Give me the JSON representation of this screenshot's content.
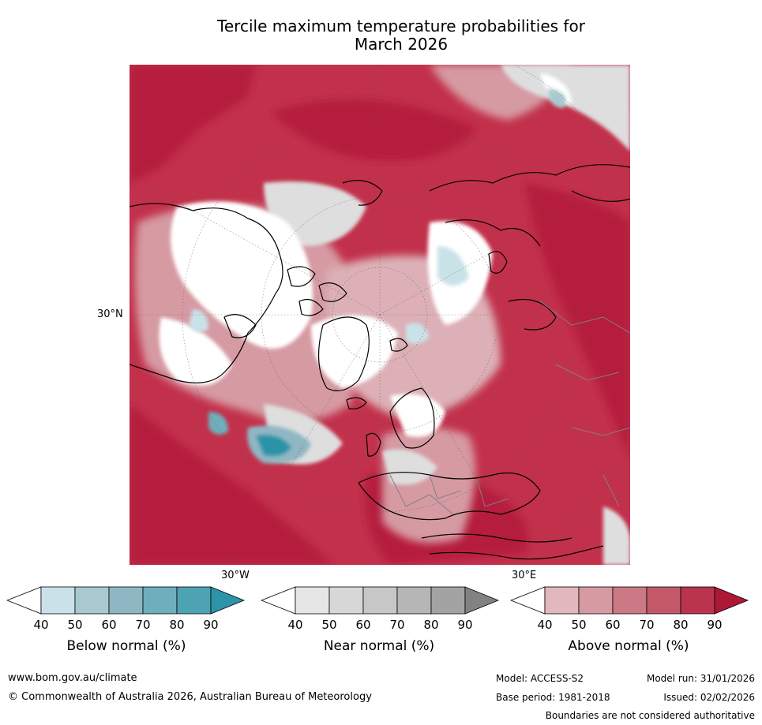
{
  "title": {
    "line1": "Tercile maximum temperature probabilities for",
    "line2": "March 2026"
  },
  "map": {
    "lat_label": "30°N",
    "lon_labels": [
      "30°W",
      "30°E"
    ],
    "colors": {
      "ocean_warm": "#c2314b",
      "ocean_hot": "#b51f3c",
      "land_pale": "#dcb0b6",
      "near": "#dedede",
      "cold_light": "#c9e2e8",
      "cold_mid": "#62aebd",
      "cold_deep": "#2c93a8",
      "coast": "#000000",
      "border": "#808080"
    }
  },
  "colorbars": [
    {
      "label": "Below normal (%)",
      "ticks": [
        "40",
        "50",
        "60",
        "70",
        "80",
        "90"
      ],
      "colors": [
        "#ffffff",
        "#cae2e7",
        "#a8c9cf",
        "#8fb7c3",
        "#6faebc",
        "#4da3b3",
        "#2c93a8"
      ]
    },
    {
      "label": "Near normal (%)",
      "ticks": [
        "40",
        "50",
        "60",
        "70",
        "80",
        "90"
      ],
      "colors": [
        "#ffffff",
        "#e6e6e6",
        "#d7d7d7",
        "#c7c7c7",
        "#b6b6b6",
        "#a3a3a3",
        "#828282"
      ]
    },
    {
      "label": "Above normal (%)",
      "ticks": [
        "40",
        "50",
        "60",
        "70",
        "80",
        "90"
      ],
      "colors": [
        "#ffffff",
        "#e2b8bd",
        "#d69aa3",
        "#cb7984",
        "#c35968",
        "#ba344e",
        "#ad1837"
      ]
    }
  ],
  "footer": {
    "url": "www.bom.gov.au/climate",
    "copyright": "© Commonwealth of Australia 2026, Australian Bureau of Meteorology",
    "model": "Model: ACCESS-S2",
    "model_run": "Model run: 31/01/2026",
    "base_period": "Base period: 1981-2018",
    "issued": "Issued: 02/02/2026",
    "disclaimer": "Boundaries are not considered authoritative"
  }
}
